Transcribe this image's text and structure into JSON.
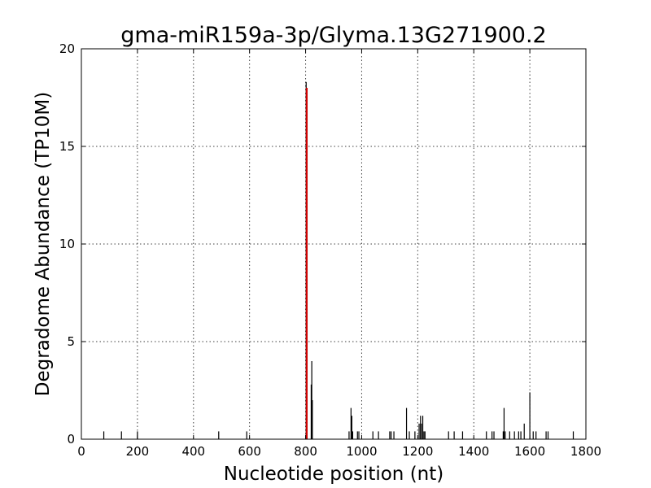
{
  "chart_data": {
    "type": "bar",
    "title": "gma-miR159a-3p/Glyma.13G271900.2",
    "xlabel": "Nucleotide position (nt)",
    "ylabel": "Degradome Abundance (TP10M)",
    "xlim": [
      0,
      1800
    ],
    "ylim": [
      0,
      20
    ],
    "xticks": [
      "0",
      "200",
      "400",
      "600",
      "800",
      "1000",
      "1200",
      "1400",
      "1600",
      "1800"
    ],
    "yticks": [
      "0",
      "5",
      "10",
      "15",
      "20"
    ],
    "grid": true,
    "series": [
      {
        "color": "#000000",
        "points": [
          [
            80,
            0.4
          ],
          [
            143,
            0.4
          ],
          [
            200,
            0.4
          ],
          [
            490,
            0.4
          ],
          [
            590,
            0.4
          ],
          [
            802,
            18.3
          ],
          [
            820,
            2.8
          ],
          [
            822,
            4.0
          ],
          [
            824,
            2.0
          ],
          [
            955,
            0.4
          ],
          [
            962,
            1.6
          ],
          [
            965,
            1.2
          ],
          [
            968,
            0.4
          ],
          [
            985,
            0.4
          ],
          [
            990,
            0.4
          ],
          [
            1040,
            0.4
          ],
          [
            1060,
            0.4
          ],
          [
            1100,
            0.4
          ],
          [
            1105,
            0.4
          ],
          [
            1115,
            0.4
          ],
          [
            1160,
            1.6
          ],
          [
            1170,
            0.4
          ],
          [
            1190,
            0.4
          ],
          [
            1205,
            0.8
          ],
          [
            1210,
            1.2
          ],
          [
            1213,
            0.8
          ],
          [
            1218,
            1.2
          ],
          [
            1222,
            0.4
          ],
          [
            1226,
            0.4
          ],
          [
            1310,
            0.4
          ],
          [
            1330,
            0.4
          ],
          [
            1360,
            0.4
          ],
          [
            1445,
            0.4
          ],
          [
            1465,
            0.4
          ],
          [
            1472,
            0.4
          ],
          [
            1505,
            0.4
          ],
          [
            1508,
            1.6
          ],
          [
            1512,
            0.4
          ],
          [
            1528,
            0.4
          ],
          [
            1545,
            0.4
          ],
          [
            1560,
            0.4
          ],
          [
            1568,
            0.4
          ],
          [
            1580,
            0.8
          ],
          [
            1600,
            2.4
          ],
          [
            1612,
            0.4
          ],
          [
            1622,
            0.4
          ],
          [
            1658,
            0.4
          ],
          [
            1665,
            0.4
          ],
          [
            1755,
            0.4
          ]
        ]
      },
      {
        "color": "#cc0000",
        "points": [
          [
            804,
            18.0
          ]
        ]
      }
    ]
  }
}
